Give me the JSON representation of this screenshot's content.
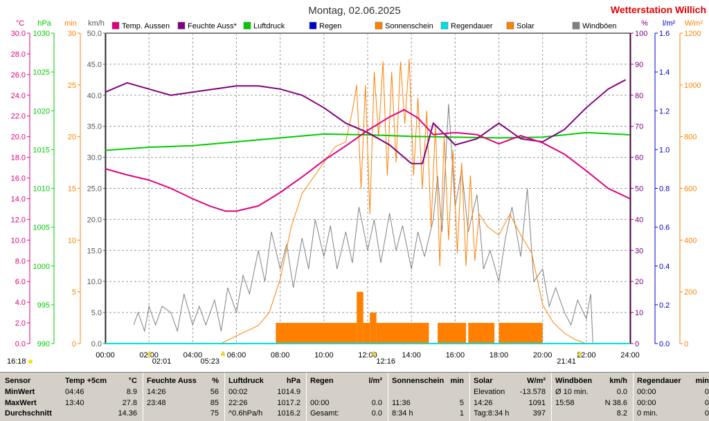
{
  "title": "Montag, 02.06.2025",
  "brand": "Wetterstation Willich",
  "chart_data": {
    "type": "line",
    "x_ticks": [
      "00:00",
      "02:00",
      "04:00",
      "06:00",
      "08:00",
      "10:00",
      "12:00",
      "14:00",
      "16:00",
      "18:00",
      "20:00",
      "22:00",
      "24:00"
    ],
    "xlim": [
      0,
      24
    ],
    "axes": {
      "temp": {
        "unit": "°C",
        "ylim": [
          0,
          30
        ],
        "ticks": [
          "0.0",
          "2.0",
          "4.0",
          "6.0",
          "8.0",
          "10.0",
          "12.0",
          "14.0",
          "16.0",
          "18.0",
          "20.0",
          "22.0",
          "24.0",
          "26.0",
          "28.0",
          "30.0"
        ],
        "color": "#e0007f"
      },
      "pressure": {
        "unit": "hPa",
        "ylim": [
          990,
          1030
        ],
        "ticks": [
          "990",
          "995",
          "1000",
          "1005",
          "1010",
          "1015",
          "1020",
          "1025",
          "1030"
        ],
        "color": "#00cc00"
      },
      "sun_min": {
        "unit": "min",
        "ylim": [
          0,
          30
        ],
        "ticks": [
          "0",
          "5",
          "10",
          "15",
          "20",
          "25",
          "30"
        ],
        "color": "#ff8000"
      },
      "wind": {
        "unit": "km/h",
        "ylim": [
          0,
          50
        ],
        "ticks": [
          "0.0",
          "5.0",
          "10.0",
          "15.0",
          "20.0",
          "25.0",
          "30.0",
          "35.0",
          "40.0",
          "45.0",
          "50.0"
        ],
        "color": "#555555"
      },
      "humidity": {
        "unit": "%",
        "ylim": [
          0,
          100
        ],
        "ticks": [
          "0",
          "10",
          "20",
          "30",
          "40",
          "50",
          "60",
          "70",
          "80",
          "90",
          "100"
        ],
        "color": "#800080"
      },
      "rain": {
        "unit": "l/m²",
        "ylim": [
          0,
          1.6
        ],
        "ticks": [
          "0.0",
          "0.2",
          "0.4",
          "0.6",
          "0.8",
          "1.0",
          "1.2",
          "1.4",
          "1.6"
        ],
        "color": "#0000cc"
      },
      "solar": {
        "unit": "W/m²",
        "ylim": [
          0,
          1200
        ],
        "ticks": [
          "0",
          "200",
          "400",
          "600",
          "800",
          "1000",
          "1200"
        ],
        "color": "#ff8000"
      }
    },
    "series": [
      {
        "name": "Temp. Aussen",
        "axis": "temp",
        "color": "#e0007f",
        "points": [
          [
            0,
            16.9
          ],
          [
            1,
            16.3
          ],
          [
            2,
            15.8
          ],
          [
            3,
            15.0
          ],
          [
            4,
            14.0
          ],
          [
            4.77,
            13.3
          ],
          [
            5.5,
            12.8
          ],
          [
            6,
            12.8
          ],
          [
            7,
            13.3
          ],
          [
            8,
            14.6
          ],
          [
            9,
            16.1
          ],
          [
            10,
            17.7
          ],
          [
            11,
            19.1
          ],
          [
            12,
            20.6
          ],
          [
            13,
            21.9
          ],
          [
            13.67,
            22.6
          ],
          [
            14.3,
            21.8
          ],
          [
            15,
            20.2
          ],
          [
            16,
            20.4
          ],
          [
            17,
            20.2
          ],
          [
            18,
            19.3
          ],
          [
            19,
            20.1
          ],
          [
            20,
            19.4
          ],
          [
            21,
            18.3
          ],
          [
            22,
            16.7
          ],
          [
            23,
            15.0
          ],
          [
            24,
            14.0
          ]
        ]
      },
      {
        "name": "Feuchte Auss*",
        "axis": "humidity",
        "color": "#800080",
        "points": [
          [
            0,
            81
          ],
          [
            1,
            84
          ],
          [
            2,
            82
          ],
          [
            3,
            80
          ],
          [
            4,
            81
          ],
          [
            5,
            82
          ],
          [
            6,
            83
          ],
          [
            7,
            83
          ],
          [
            8,
            82
          ],
          [
            9,
            80
          ],
          [
            10,
            76
          ],
          [
            11,
            71
          ],
          [
            12,
            68
          ],
          [
            13,
            64
          ],
          [
            14,
            58
          ],
          [
            14.5,
            58
          ],
          [
            15,
            71
          ],
          [
            16,
            64
          ],
          [
            17,
            66
          ],
          [
            18,
            71
          ],
          [
            19,
            66
          ],
          [
            20,
            65
          ],
          [
            21,
            69
          ],
          [
            22,
            76
          ],
          [
            23,
            82
          ],
          [
            23.8,
            85
          ]
        ]
      },
      {
        "name": "Luftdruck",
        "axis": "pressure",
        "color": "#00cc00",
        "points": [
          [
            0,
            1014.9
          ],
          [
            2,
            1015.3
          ],
          [
            4,
            1015.5
          ],
          [
            6,
            1016.0
          ],
          [
            8,
            1016.5
          ],
          [
            10,
            1017.0
          ],
          [
            12,
            1016.9
          ],
          [
            14,
            1016.7
          ],
          [
            16,
            1016.6
          ],
          [
            18,
            1016.5
          ],
          [
            20,
            1016.6
          ],
          [
            22,
            1017.2
          ],
          [
            24,
            1016.9
          ]
        ]
      },
      {
        "name": "Regen",
        "axis": "rain",
        "color": "#0000cc",
        "points": [
          [
            0,
            0
          ],
          [
            24,
            0
          ]
        ]
      },
      {
        "name": "Sonnenschein",
        "axis": "sun_min",
        "color": "#ff8000",
        "bars": [
          [
            7.8,
            11.5,
            2
          ],
          [
            11.5,
            11.8,
            5
          ],
          [
            11.8,
            12.1,
            2
          ],
          [
            12.1,
            12.4,
            3
          ],
          [
            12.4,
            14.8,
            2
          ],
          [
            15.2,
            16.5,
            2
          ],
          [
            16.6,
            17.8,
            2
          ],
          [
            18.0,
            20.0,
            2
          ]
        ]
      },
      {
        "name": "Regendauer",
        "axis": "sun_min",
        "color": "#00e0e0",
        "points": [
          [
            0,
            0
          ],
          [
            24,
            0
          ]
        ]
      },
      {
        "name": "Solar",
        "axis": "solar",
        "color": "#ff8000",
        "points": [
          [
            5.3,
            0
          ],
          [
            6,
            30
          ],
          [
            7,
            70
          ],
          [
            7.5,
            120
          ],
          [
            8,
            250
          ],
          [
            8.5,
            450
          ],
          [
            9,
            580
          ],
          [
            9.5,
            640
          ],
          [
            10,
            700
          ],
          [
            10.5,
            760
          ],
          [
            11,
            780
          ],
          [
            11.3,
            900
          ],
          [
            11.5,
            1000
          ],
          [
            11.7,
            600
          ],
          [
            11.9,
            1000
          ],
          [
            12.1,
            500
          ],
          [
            12.3,
            1050
          ],
          [
            12.5,
            800
          ],
          [
            12.7,
            1091
          ],
          [
            12.9,
            650
          ],
          [
            13.1,
            1050
          ],
          [
            13.3,
            700
          ],
          [
            13.5,
            1090
          ],
          [
            13.7,
            850
          ],
          [
            13.9,
            1100
          ],
          [
            14.1,
            650
          ],
          [
            14.3,
            950
          ],
          [
            14.5,
            600
          ],
          [
            14.7,
            900
          ],
          [
            14.9,
            450
          ],
          [
            15.1,
            850
          ],
          [
            15.3,
            300
          ],
          [
            15.5,
            800
          ],
          [
            15.7,
            400
          ],
          [
            15.9,
            750
          ],
          [
            16.1,
            350
          ],
          [
            16.3,
            700
          ],
          [
            16.5,
            300
          ],
          [
            16.7,
            650
          ],
          [
            16.9,
            320
          ],
          [
            17.1,
            500
          ],
          [
            17.5,
            450
          ],
          [
            18,
            420
          ],
          [
            18.5,
            500
          ],
          [
            19,
            420
          ],
          [
            19.5,
            350
          ],
          [
            20,
            150
          ],
          [
            20.5,
            80
          ],
          [
            21,
            40
          ],
          [
            21.5,
            15
          ],
          [
            22,
            0
          ]
        ]
      },
      {
        "name": "Windböen",
        "axis": "wind",
        "color": "#808080",
        "points": [
          [
            1.3,
            3
          ],
          [
            1.5,
            5
          ],
          [
            1.8,
            2
          ],
          [
            2,
            6
          ],
          [
            2.3,
            3
          ],
          [
            2.6,
            6
          ],
          [
            3,
            5
          ],
          [
            3.3,
            2
          ],
          [
            3.6,
            8
          ],
          [
            4,
            3
          ],
          [
            4.3,
            6
          ],
          [
            4.6,
            3
          ],
          [
            5,
            7
          ],
          [
            5.3,
            2
          ],
          [
            5.6,
            9
          ],
          [
            6,
            5
          ],
          [
            6.3,
            11
          ],
          [
            6.6,
            8
          ],
          [
            7,
            15
          ],
          [
            7.3,
            10
          ],
          [
            7.6,
            18
          ],
          [
            8,
            12
          ],
          [
            8.3,
            16
          ],
          [
            8.6,
            9
          ],
          [
            9,
            17
          ],
          [
            9.3,
            12
          ],
          [
            9.6,
            20
          ],
          [
            10,
            14
          ],
          [
            10.3,
            19
          ],
          [
            10.6,
            12
          ],
          [
            11,
            18
          ],
          [
            11.3,
            13
          ],
          [
            11.6,
            22
          ],
          [
            12,
            15
          ],
          [
            12.3,
            20
          ],
          [
            12.6,
            13
          ],
          [
            13,
            21
          ],
          [
            13.3,
            15
          ],
          [
            13.6,
            19
          ],
          [
            14,
            12
          ],
          [
            14.3,
            18
          ],
          [
            14.6,
            14
          ],
          [
            15,
            20
          ],
          [
            15.2,
            27
          ],
          [
            15.4,
            18
          ],
          [
            15.7,
            38.6
          ],
          [
            16,
            22
          ],
          [
            16.3,
            28
          ],
          [
            16.6,
            18
          ],
          [
            17,
            24
          ],
          [
            17.3,
            12
          ],
          [
            17.6,
            15
          ],
          [
            18,
            10
          ],
          [
            18.3,
            17
          ],
          [
            18.6,
            22
          ],
          [
            19,
            14
          ],
          [
            19.3,
            25
          ],
          [
            19.6,
            10
          ],
          [
            20,
            12
          ],
          [
            20.3,
            6
          ],
          [
            20.6,
            9
          ],
          [
            21,
            5
          ],
          [
            21.3,
            3
          ],
          [
            21.6,
            7
          ],
          [
            22,
            4
          ],
          [
            22.2,
            8
          ],
          [
            22.3,
            0
          ]
        ]
      }
    ],
    "legend": [
      "Temp. Aussen",
      "Feuchte Auss*",
      "Luftdruck",
      "Regen",
      "Sonnenschein",
      "Regendauer",
      "Solar",
      "Windböen"
    ],
    "legend_colors": [
      "#e0007f",
      "#800080",
      "#00cc00",
      "#0000cc",
      "#ff8000",
      "#00e0e0",
      "#ff8000",
      "#808080"
    ],
    "sun_events": {
      "sunrise": "05:23",
      "sunset": "21:41",
      "civil_dawn": "02:01",
      "noon": "12:16",
      "left_time": "16:18"
    }
  },
  "table": {
    "row_labels": [
      "Sensor",
      "MinWert",
      "MaxWert",
      "Durchschnitt"
    ],
    "columns": [
      {
        "name": "Temp +5cm",
        "unit": "°C",
        "min": [
          "04:46",
          "8.9"
        ],
        "max": [
          "13:40",
          "27.8"
        ],
        "avg": [
          "",
          "14.36"
        ]
      },
      {
        "name": "Feuchte Auss",
        "unit": "%",
        "min": [
          "14:26",
          "56"
        ],
        "max": [
          "23:48",
          "85"
        ],
        "avg": [
          "",
          "75"
        ]
      },
      {
        "name": "Luftdruck",
        "unit": "hPa",
        "min": [
          "00:02",
          "1014.9"
        ],
        "max": [
          "22:26",
          "1017.2"
        ],
        "avg": [
          "^0.6hPa/h",
          "1016.2"
        ]
      },
      {
        "name": "Regen",
        "unit": "l/m²",
        "min": [
          "",
          ""
        ],
        "max": [
          "00:00",
          "0.0"
        ],
        "avg": [
          "Gesamt:",
          "0.0"
        ]
      },
      {
        "name": "Sonnenschein",
        "unit": "min",
        "min": [
          "",
          ""
        ],
        "max": [
          "11:36",
          "5"
        ],
        "avg": [
          "8:34 h",
          "1"
        ]
      },
      {
        "name": "Solar",
        "unit": "W/m²",
        "min": [
          "Elevation",
          "-13.578"
        ],
        "max": [
          "14:26",
          "1091"
        ],
        "avg": [
          "Tag:8:34 h",
          "397"
        ]
      },
      {
        "name": "Windböen",
        "unit": "km/h",
        "min": [
          "Ø 10 min.",
          "0.0"
        ],
        "max": [
          "15:58",
          "N 38.6"
        ],
        "avg": [
          "",
          "8.2"
        ]
      },
      {
        "name": "Regendauer",
        "unit": "min",
        "min": [
          "00:00",
          "0"
        ],
        "max": [
          "00:00",
          "0"
        ],
        "avg": [
          "0 min.",
          "0"
        ]
      }
    ]
  }
}
